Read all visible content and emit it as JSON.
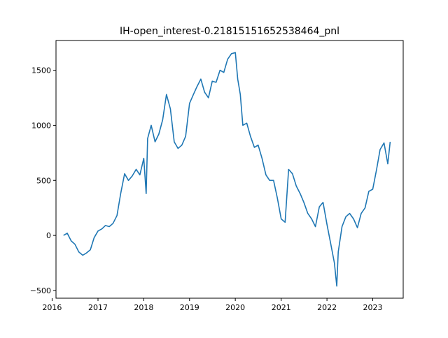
{
  "chart_data": {
    "type": "line",
    "title": "IH-open_interest-0.21815151652538464_pnl",
    "xlabel": "",
    "ylabel": "",
    "grid": false,
    "x_ticks": [
      "2016",
      "2017",
      "2018",
      "2019",
      "2020",
      "2021",
      "2022",
      "2023"
    ],
    "y_ticks": [
      -500,
      0,
      500,
      1000,
      1500
    ],
    "xlim": [
      "2016-02-01",
      "2023-09-01"
    ],
    "ylim": [
      -570,
      1770
    ],
    "line_color": "#1f77b4",
    "series": [
      {
        "x": [
          "2016-04-01",
          "2016-05-01",
          "2016-06-01",
          "2016-07-01",
          "2016-08-01",
          "2016-09-01",
          "2016-10-01",
          "2016-11-01",
          "2016-12-01",
          "2017-01-01",
          "2017-02-01",
          "2017-03-01",
          "2017-04-01",
          "2017-05-01",
          "2017-06-01",
          "2017-07-01",
          "2017-08-01",
          "2017-09-01",
          "2017-10-01",
          "2017-11-01",
          "2017-12-01",
          "2018-01-01",
          "2018-01-20",
          "2018-02-01",
          "2018-03-01",
          "2018-04-01",
          "2018-05-01",
          "2018-06-01",
          "2018-07-01",
          "2018-08-01",
          "2018-09-01",
          "2018-10-01",
          "2018-11-01",
          "2018-12-01",
          "2019-01-01",
          "2019-02-01",
          "2019-03-01",
          "2019-04-01",
          "2019-05-01",
          "2019-06-01",
          "2019-07-01",
          "2019-08-01",
          "2019-09-01",
          "2019-10-01",
          "2019-11-01",
          "2019-12-01",
          "2020-01-01",
          "2020-01-20",
          "2020-02-10",
          "2020-03-01",
          "2020-04-01",
          "2020-05-01",
          "2020-06-01",
          "2020-07-01",
          "2020-08-01",
          "2020-09-01",
          "2020-10-01",
          "2020-11-01",
          "2020-12-01",
          "2021-01-01",
          "2021-02-01",
          "2021-03-01",
          "2021-04-01",
          "2021-05-01",
          "2021-06-01",
          "2021-07-01",
          "2021-08-01",
          "2021-09-01",
          "2021-10-01",
          "2021-11-01",
          "2021-12-01",
          "2022-01-01",
          "2022-02-01",
          "2022-03-01",
          "2022-03-20",
          "2022-04-01",
          "2022-05-01",
          "2022-06-01",
          "2022-07-01",
          "2022-08-01",
          "2022-09-01",
          "2022-10-01",
          "2022-11-01",
          "2022-12-01",
          "2023-01-01",
          "2023-02-01",
          "2023-03-01",
          "2023-04-01",
          "2023-05-01",
          "2023-05-20"
        ],
        "y": [
          0,
          20,
          -50,
          -80,
          -150,
          -180,
          -160,
          -130,
          -20,
          40,
          60,
          90,
          80,
          110,
          180,
          380,
          560,
          500,
          540,
          600,
          550,
          700,
          380,
          880,
          1000,
          850,
          920,
          1050,
          1280,
          1150,
          850,
          790,
          820,
          900,
          1200,
          1280,
          1350,
          1420,
          1300,
          1250,
          1400,
          1390,
          1500,
          1480,
          1600,
          1650,
          1660,
          1420,
          1280,
          1000,
          1020,
          900,
          800,
          820,
          700,
          550,
          500,
          500,
          340,
          150,
          120,
          600,
          560,
          450,
          380,
          300,
          200,
          150,
          80,
          260,
          300,
          100,
          -80,
          -250,
          -460,
          -150,
          80,
          170,
          200,
          150,
          70,
          200,
          250,
          400,
          420,
          600,
          780,
          840,
          650,
          850
        ]
      }
    ]
  }
}
